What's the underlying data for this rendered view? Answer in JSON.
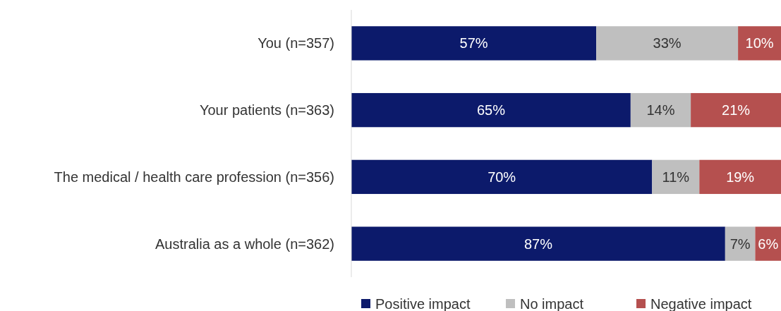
{
  "chart_data": {
    "type": "bar",
    "orientation": "horizontal",
    "stacked": true,
    "categories": [
      "You (n=357)",
      "Your patients (n=363)",
      "The medical / health care profession (n=356)",
      "Australia as a whole (n=362)"
    ],
    "series": [
      {
        "name": "Positive impact",
        "color": "#0c1a6b",
        "values": [
          57,
          65,
          70,
          87
        ],
        "value_labels": [
          "57%",
          "65%",
          "70%",
          "87%"
        ]
      },
      {
        "name": "No impact",
        "color": "#bfbfbf",
        "values": [
          33,
          14,
          11,
          7
        ],
        "value_labels": [
          "33%",
          "14%",
          "11%",
          "7%"
        ]
      },
      {
        "name": "Negative impact",
        "color": "#b5504f",
        "values": [
          10,
          21,
          19,
          6
        ],
        "value_labels": [
          "10%",
          "21%",
          "19%",
          "6%"
        ]
      }
    ],
    "xlim": [
      0,
      100
    ],
    "tick_labels": "y",
    "legend": "bottom"
  }
}
